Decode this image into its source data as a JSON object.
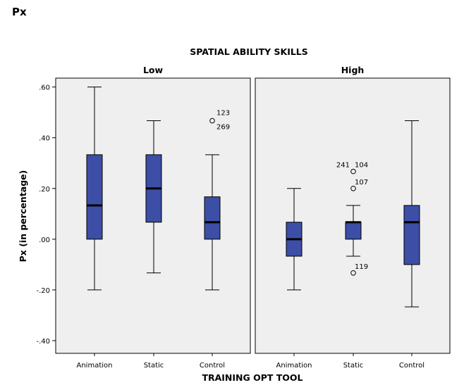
{
  "page": {
    "title": "Px"
  },
  "chart_data": {
    "type": "boxplot",
    "title": "SPATIAL ABILITY SKILLS",
    "xlabel": "TRAINING OPT TOOL",
    "ylabel": "Px (in percentage)",
    "ylim": [
      -0.45,
      0.635
    ],
    "y_ticks": [
      -0.4,
      -0.2,
      0.0,
      0.2,
      0.4,
      0.6
    ],
    "y_tick_labels": [
      "-.40",
      "-.20",
      ".00",
      ".20",
      ".40",
      ".60"
    ],
    "grid": false,
    "box_color": "#3d4ea6",
    "panel_background": "#efefef",
    "panels": [
      {
        "label": "Low",
        "categories": [
          "Animation",
          "Static",
          "Control"
        ],
        "boxes": [
          {
            "whisker_low": -0.2,
            "q1": 0.0,
            "median": 0.133,
            "q3": 0.333,
            "whisker_high": 0.6,
            "outliers": []
          },
          {
            "whisker_low": -0.133,
            "q1": 0.067,
            "median": 0.2,
            "q3": 0.333,
            "whisker_high": 0.467,
            "outliers": []
          },
          {
            "whisker_low": -0.2,
            "q1": 0.0,
            "median": 0.067,
            "q3": 0.167,
            "whisker_high": 0.333,
            "outliers": [
              {
                "value": 0.467,
                "labels": [
                  "123",
                  "269"
                ]
              }
            ]
          }
        ]
      },
      {
        "label": "High",
        "categories": [
          "Animation",
          "Static",
          "Control"
        ],
        "boxes": [
          {
            "whisker_low": -0.2,
            "q1": -0.067,
            "median": 0.0,
            "q3": 0.067,
            "whisker_high": 0.2,
            "outliers": []
          },
          {
            "whisker_low": -0.067,
            "q1": 0.0,
            "median": 0.067,
            "q3": 0.067,
            "whisker_high": 0.133,
            "outliers": [
              {
                "value": 0.267,
                "labels": [
                  "241",
                  "104"
                ]
              },
              {
                "value": 0.2,
                "labels": [
                  "107"
                ]
              },
              {
                "value": -0.133,
                "labels": [
                  "119"
                ]
              }
            ]
          },
          {
            "whisker_low": -0.267,
            "q1": -0.1,
            "median": 0.067,
            "q3": 0.133,
            "whisker_high": 0.467,
            "outliers": []
          }
        ]
      }
    ]
  }
}
